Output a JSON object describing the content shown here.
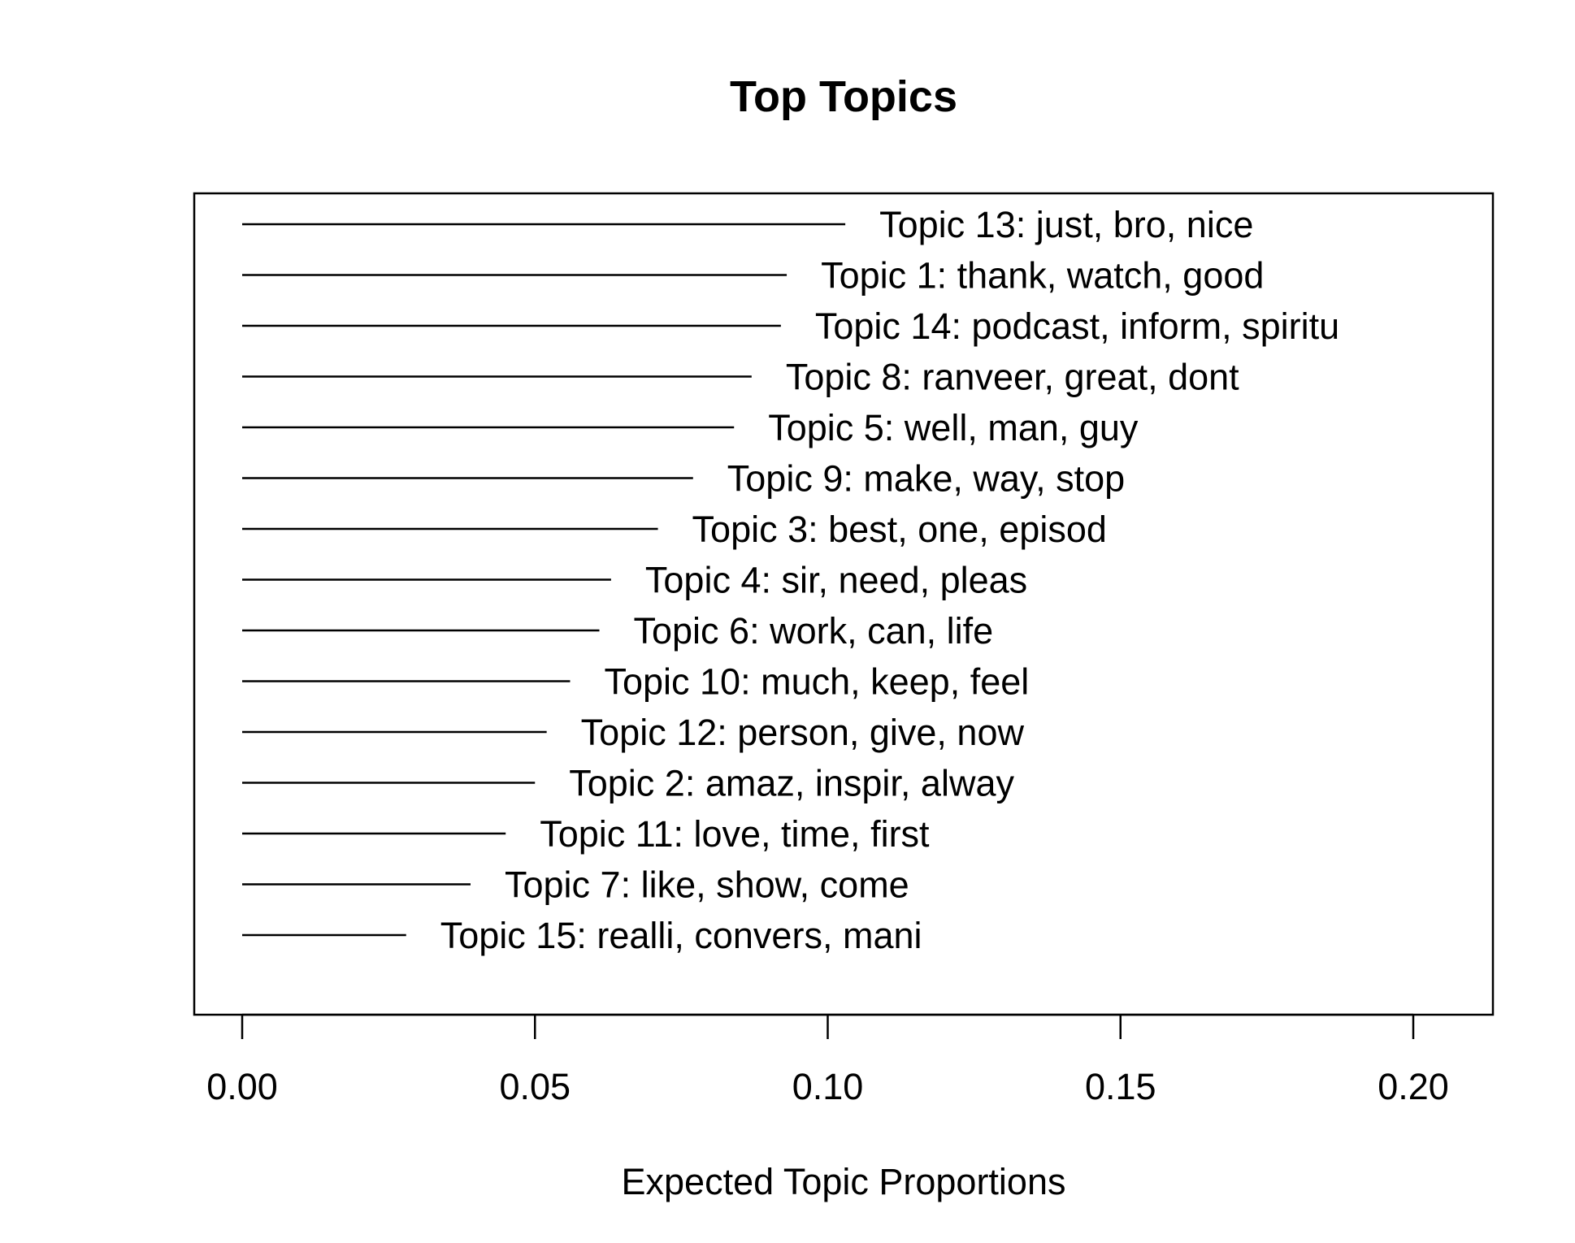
{
  "chart_data": {
    "type": "bar",
    "title": "Top Topics",
    "xlabel": "Expected Topic Proportions",
    "ylabel": "",
    "xlim": [
      0.0,
      0.2
    ],
    "xticks": [
      "0.00",
      "0.05",
      "0.10",
      "0.15",
      "0.20"
    ],
    "xtick_values": [
      0.0,
      0.05,
      0.1,
      0.15,
      0.2
    ],
    "categories": [
      "Topic 13: just, bro, nice",
      "Topic 1: thank, watch, good",
      "Topic 14: podcast, inform, spiritu",
      "Topic 8: ranveer, great, dont",
      "Topic 5: well, man, guy",
      "Topic 9: make, way, stop",
      "Topic 3: best, one, episod",
      "Topic 4: sir, need, pleas",
      "Topic 6: work, can, life",
      "Topic 10: much, keep, feel",
      "Topic 12: person, give, now",
      "Topic 2: amaz, inspir, alway",
      "Topic 11: love, time, first",
      "Topic 7: like, show, come",
      "Topic 15: realli, convers, mani"
    ],
    "values": [
      0.103,
      0.093,
      0.092,
      0.087,
      0.084,
      0.077,
      0.071,
      0.063,
      0.061,
      0.056,
      0.052,
      0.05,
      0.045,
      0.039,
      0.028
    ],
    "grid": false,
    "legend": "none"
  }
}
